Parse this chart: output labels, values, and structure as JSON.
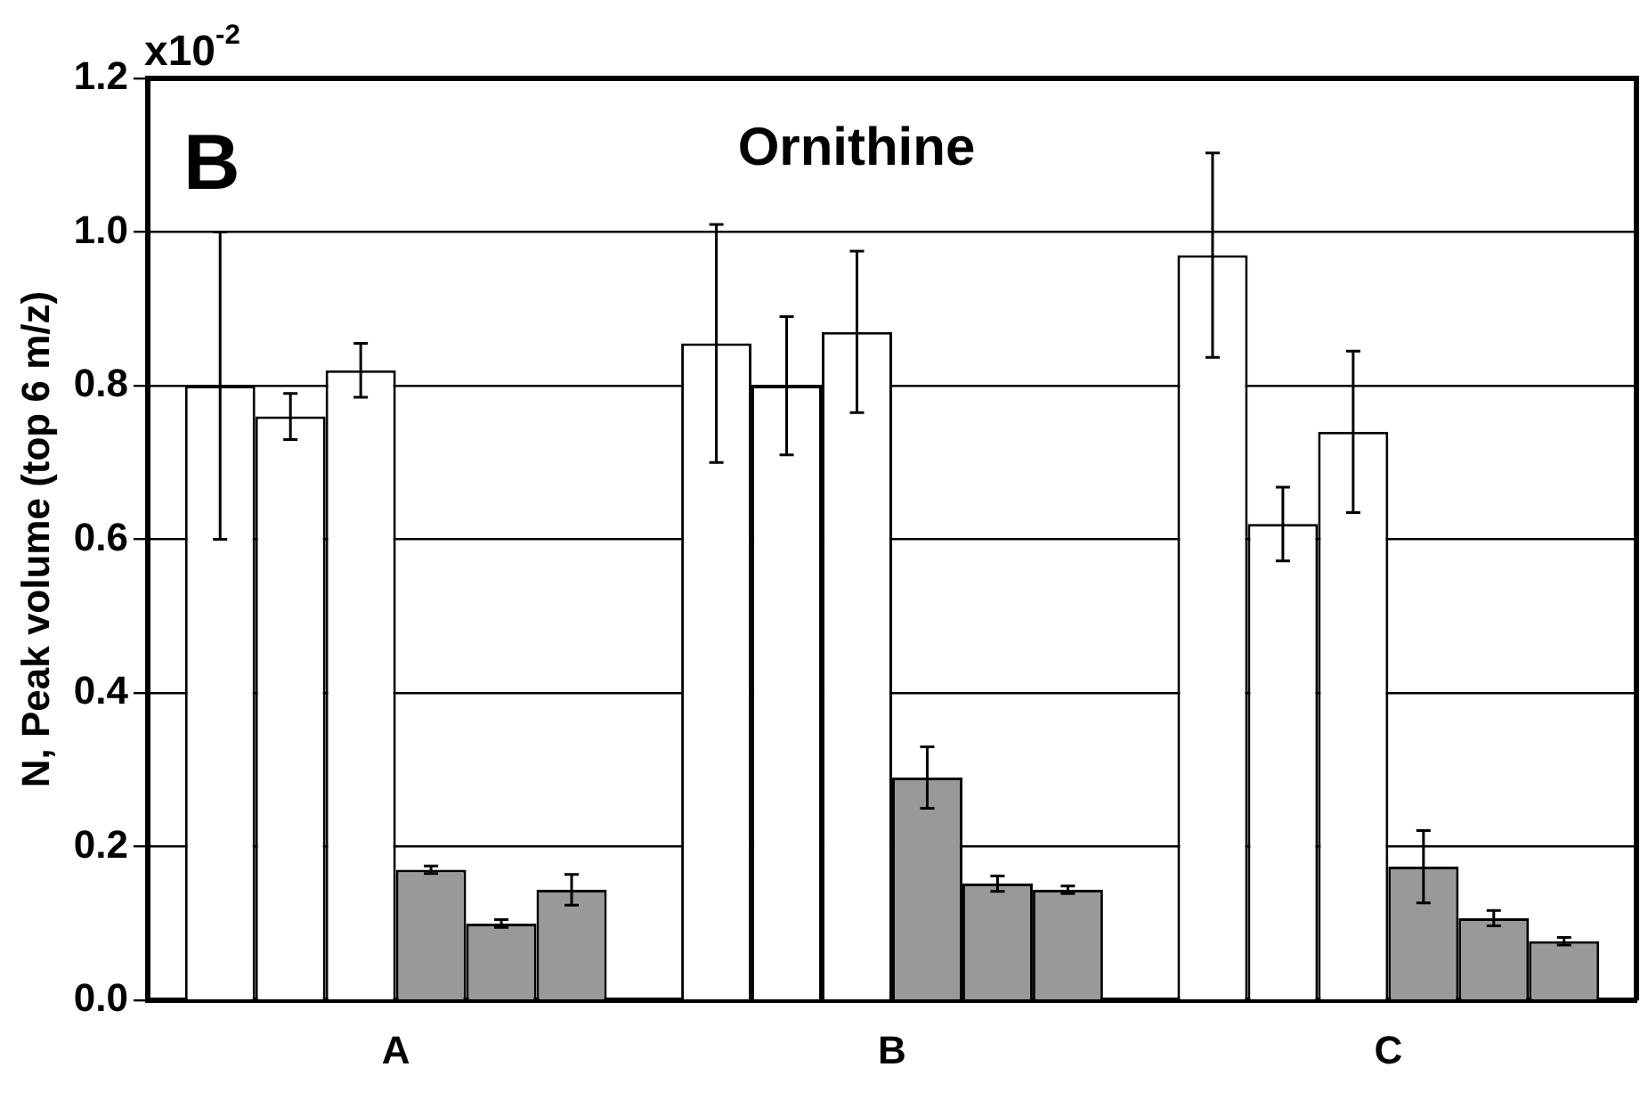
{
  "chart_data": {
    "type": "bar",
    "title": "Ornithine",
    "ylabel": "N, Peak volume (top 6 m/z)",
    "annotations": [
      "B",
      "x10$^{-2}$"
    ],
    "categories": [
      "A",
      "B",
      "C"
    ],
    "series": [
      {
        "color": "#ffffff",
        "values": [
          0.8,
          0.855,
          0.97
        ],
        "errors": [
          0.2,
          0.155,
          0.133
        ]
      },
      {
        "color": "#ffffff",
        "values": [
          0.76,
          0.8,
          0.62
        ],
        "errors": [
          0.03,
          0.09,
          0.048
        ]
      },
      {
        "color": "#ffffff",
        "values": [
          0.82,
          0.87,
          0.74
        ],
        "errors": [
          0.035,
          0.105,
          0.105
        ]
      },
      {
        "color": "#999999",
        "values": [
          0.17,
          0.29,
          0.174
        ],
        "errors": [
          0.005,
          0.04,
          0.047
        ]
      },
      {
        "color": "#999999",
        "values": [
          0.1,
          0.152,
          0.107
        ],
        "errors": [
          0.005,
          0.01,
          0.01
        ]
      },
      {
        "color": "#999999",
        "values": [
          0.144,
          0.144,
          0.077
        ],
        "errors": [
          0.02,
          0.005,
          0.005
        ]
      }
    ],
    "ylim": [
      0,
      1.2
    ],
    "yticks": [
      {
        "value": 0,
        "label": "0.0"
      },
      {
        "value": 0.2,
        "label": "0.2"
      },
      {
        "value": 0.4,
        "label": "0.4"
      },
      {
        "value": 0.6,
        "label": "0.6"
      },
      {
        "value": 0.8,
        "label": "0.8"
      },
      {
        "value": 1.0,
        "label": "1.0"
      },
      {
        "value": 1.2,
        "label": "1.2"
      }
    ],
    "grid": "y",
    "legend": false
  }
}
